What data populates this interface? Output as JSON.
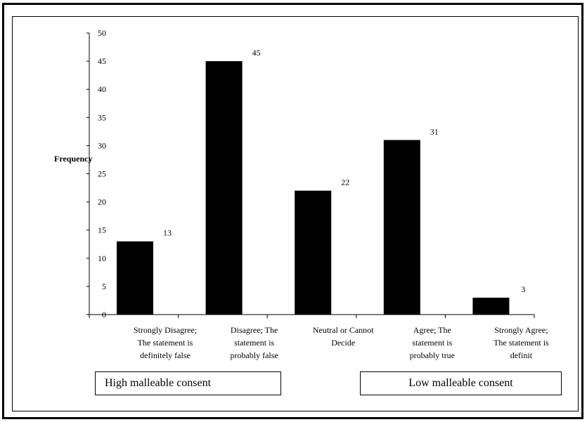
{
  "chart_data": {
    "type": "bar",
    "title": "",
    "ylabel": "Frequency",
    "xlabel": "",
    "ylim": [
      0,
      50
    ],
    "yticks": [
      0,
      5,
      10,
      15,
      20,
      25,
      30,
      35,
      40,
      45,
      50
    ],
    "categories": [
      [
        "Strongly Disagree;",
        "The statement is",
        "definitely false"
      ],
      [
        "Disagree; The",
        "statement is",
        "probably false"
      ],
      [
        "Neutral or Cannot",
        "Decide"
      ],
      [
        "Agree; The",
        "statement is",
        "probably true"
      ],
      [
        "Strongly Agree;",
        "The statement is",
        "definit"
      ]
    ],
    "values": [
      13,
      45,
      22,
      31,
      3
    ],
    "bar_color": "#000000",
    "grid": false
  },
  "boxes": {
    "high": "High malleable consent",
    "low": "Low malleable consent"
  }
}
